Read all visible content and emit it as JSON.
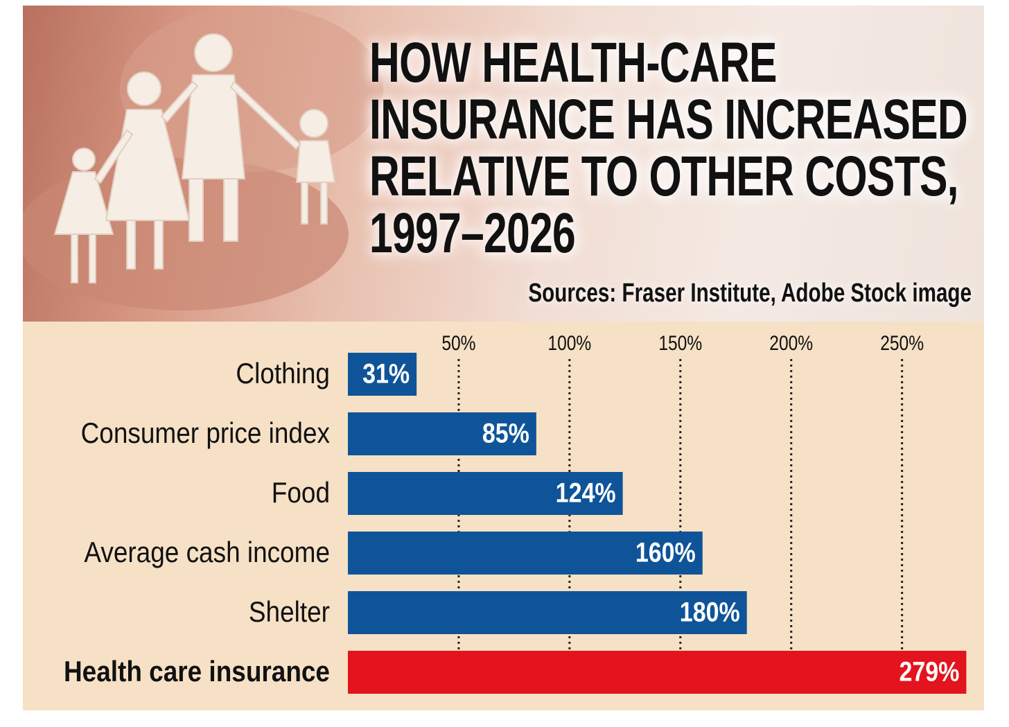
{
  "chart_data": {
    "type": "bar",
    "orientation": "horizontal",
    "title": "HOW HEALTH-CARE INSURANCE HAS INCREASED RELATIVE TO OTHER COSTS, 1997–2026",
    "source": "Sources: Fraser Institute, Adobe Stock image",
    "categories": [
      "Clothing",
      "Consumer price index",
      "Food",
      "Average cash income",
      "Shelter",
      "Health care insurance"
    ],
    "values": [
      31,
      85,
      124,
      160,
      180,
      279
    ],
    "value_labels": [
      "31%",
      "85%",
      "124%",
      "160%",
      "180%",
      "279%"
    ],
    "colors": [
      "#0f5499",
      "#0f5499",
      "#0f5499",
      "#0f5499",
      "#0f5499",
      "#e3141d"
    ],
    "xlim": [
      0,
      287
    ],
    "xticks": [
      {
        "value": 50,
        "label": "50%"
      },
      {
        "value": 100,
        "label": "100%"
      },
      {
        "value": 150,
        "label": "150%"
      },
      {
        "value": 200,
        "label": "200%"
      },
      {
        "value": 250,
        "label": "250%"
      }
    ],
    "grid": true
  }
}
